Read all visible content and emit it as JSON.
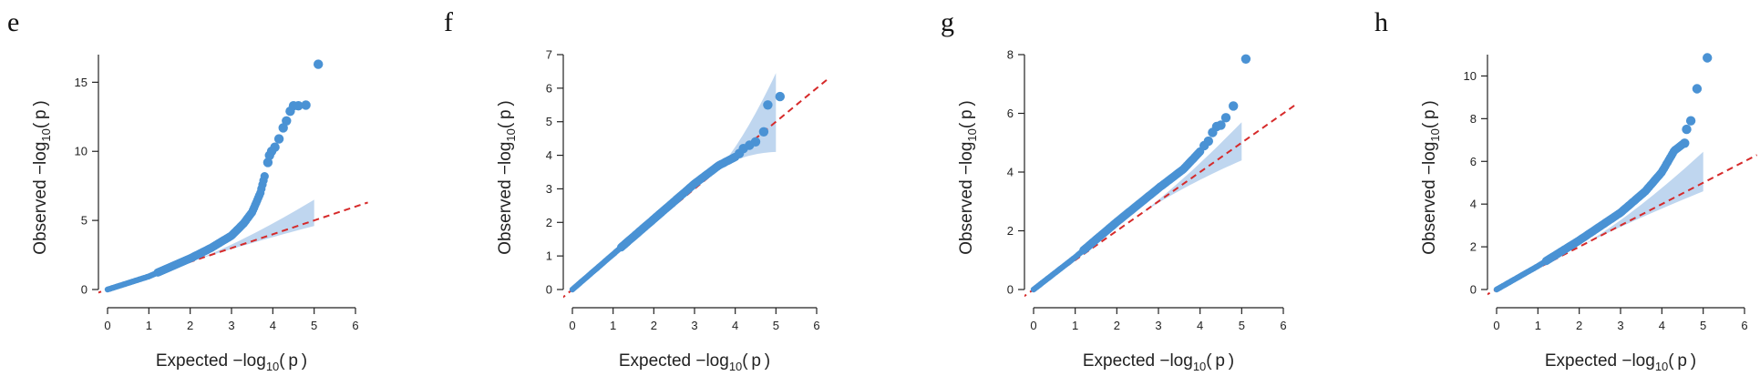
{
  "figure": {
    "panel_letters": [
      "e",
      "f",
      "g",
      "h"
    ]
  },
  "colors": {
    "points": "#4a92d4",
    "ci_band": "#a9c8ea",
    "null_line": "#d62a2a",
    "axis": "#222222"
  },
  "chart_data": [
    {
      "panel": "e",
      "type": "scatter",
      "subtype": "qq-plot",
      "xlabel": "Expected −log10(p)",
      "ylabel": "Observed −log10(p)",
      "xlim": [
        0,
        6
      ],
      "ylim": [
        0,
        17
      ],
      "xticks": [
        0,
        1,
        2,
        3,
        4,
        5,
        6
      ],
      "yticks": [
        0,
        5,
        10,
        15
      ],
      "curve": [
        [
          0,
          0
        ],
        [
          1,
          0.95
        ],
        [
          1.5,
          1.6
        ],
        [
          2,
          2.25
        ],
        [
          2.5,
          3.0
        ],
        [
          3,
          3.9
        ],
        [
          3.3,
          4.8
        ],
        [
          3.5,
          5.6
        ],
        [
          3.7,
          7.0
        ],
        [
          3.8,
          8.2
        ]
      ],
      "outliers": [
        [
          3.88,
          9.2
        ],
        [
          3.92,
          9.7
        ],
        [
          3.97,
          10.0
        ],
        [
          4.05,
          10.3
        ],
        [
          4.15,
          10.9
        ],
        [
          4.25,
          11.7
        ],
        [
          4.33,
          12.2
        ],
        [
          4.42,
          12.9
        ],
        [
          4.5,
          13.3
        ],
        [
          4.62,
          13.3
        ],
        [
          4.8,
          13.35
        ],
        [
          5.1,
          16.3
        ]
      ],
      "ci": {
        "x_start": 2,
        "x_end": 5,
        "upper_end": 6.5,
        "lower_end": 4.6
      }
    },
    {
      "panel": "f",
      "type": "scatter",
      "subtype": "qq-plot",
      "xlabel": "Expected −log10(p)",
      "ylabel": "Observed −log10(p)",
      "xlim": [
        0,
        6
      ],
      "ylim": [
        0,
        7
      ],
      "xticks": [
        0,
        1,
        2,
        3,
        4,
        5,
        6
      ],
      "yticks": [
        0,
        1,
        2,
        3,
        4,
        5,
        6,
        7
      ],
      "curve": [
        [
          0,
          0
        ],
        [
          1,
          1.05
        ],
        [
          2,
          2.1
        ],
        [
          3,
          3.15
        ],
        [
          3.6,
          3.7
        ],
        [
          4.0,
          3.95
        ]
      ],
      "outliers": [
        [
          4.1,
          4.05
        ],
        [
          4.2,
          4.2
        ],
        [
          4.35,
          4.3
        ],
        [
          4.5,
          4.4
        ],
        [
          4.7,
          4.7
        ],
        [
          4.8,
          5.5
        ],
        [
          5.1,
          5.75
        ]
      ],
      "ci": {
        "x_start": 3.5,
        "x_end": 5,
        "upper_end": 6.45,
        "lower_end": 4.1
      }
    },
    {
      "panel": "g",
      "type": "scatter",
      "subtype": "qq-plot",
      "xlabel": "Expected −log10(p)",
      "ylabel": "Observed −log10(p)",
      "xlim": [
        0,
        6
      ],
      "ylim": [
        0,
        8
      ],
      "xticks": [
        0,
        1,
        2,
        3,
        4,
        5,
        6
      ],
      "yticks": [
        0,
        2,
        4,
        6,
        8
      ],
      "curve": [
        [
          0,
          0
        ],
        [
          1,
          1.1
        ],
        [
          2,
          2.3
        ],
        [
          3,
          3.45
        ],
        [
          3.6,
          4.1
        ],
        [
          4.0,
          4.7
        ]
      ],
      "outliers": [
        [
          4.1,
          4.9
        ],
        [
          4.2,
          5.05
        ],
        [
          4.3,
          5.35
        ],
        [
          4.4,
          5.55
        ],
        [
          4.5,
          5.6
        ],
        [
          4.62,
          5.85
        ],
        [
          4.8,
          6.25
        ],
        [
          5.1,
          7.85
        ]
      ],
      "ci": {
        "x_start": 2.5,
        "x_end": 5,
        "upper_end": 5.7,
        "lower_end": 4.4
      }
    },
    {
      "panel": "h",
      "type": "scatter",
      "subtype": "qq-plot",
      "xlabel": "Expected −log10(p)",
      "ylabel": "Observed −log10(p)",
      "xlim": [
        0,
        6
      ],
      "ylim": [
        0,
        11
      ],
      "xticks": [
        0,
        1,
        2,
        3,
        4,
        5,
        6
      ],
      "yticks": [
        0,
        2,
        4,
        6,
        8,
        10
      ],
      "curve": [
        [
          0,
          0
        ],
        [
          1,
          1.1
        ],
        [
          2,
          2.3
        ],
        [
          3,
          3.6
        ],
        [
          3.6,
          4.6
        ],
        [
          4.0,
          5.5
        ],
        [
          4.3,
          6.5
        ],
        [
          4.5,
          6.8
        ]
      ],
      "outliers": [
        [
          4.55,
          6.85
        ],
        [
          4.6,
          7.5
        ],
        [
          4.7,
          7.9
        ],
        [
          4.85,
          9.4
        ],
        [
          5.1,
          10.85
        ]
      ],
      "ci": {
        "x_start": 2,
        "x_end": 5,
        "upper_end": 6.45,
        "lower_end": 4.6
      }
    }
  ]
}
